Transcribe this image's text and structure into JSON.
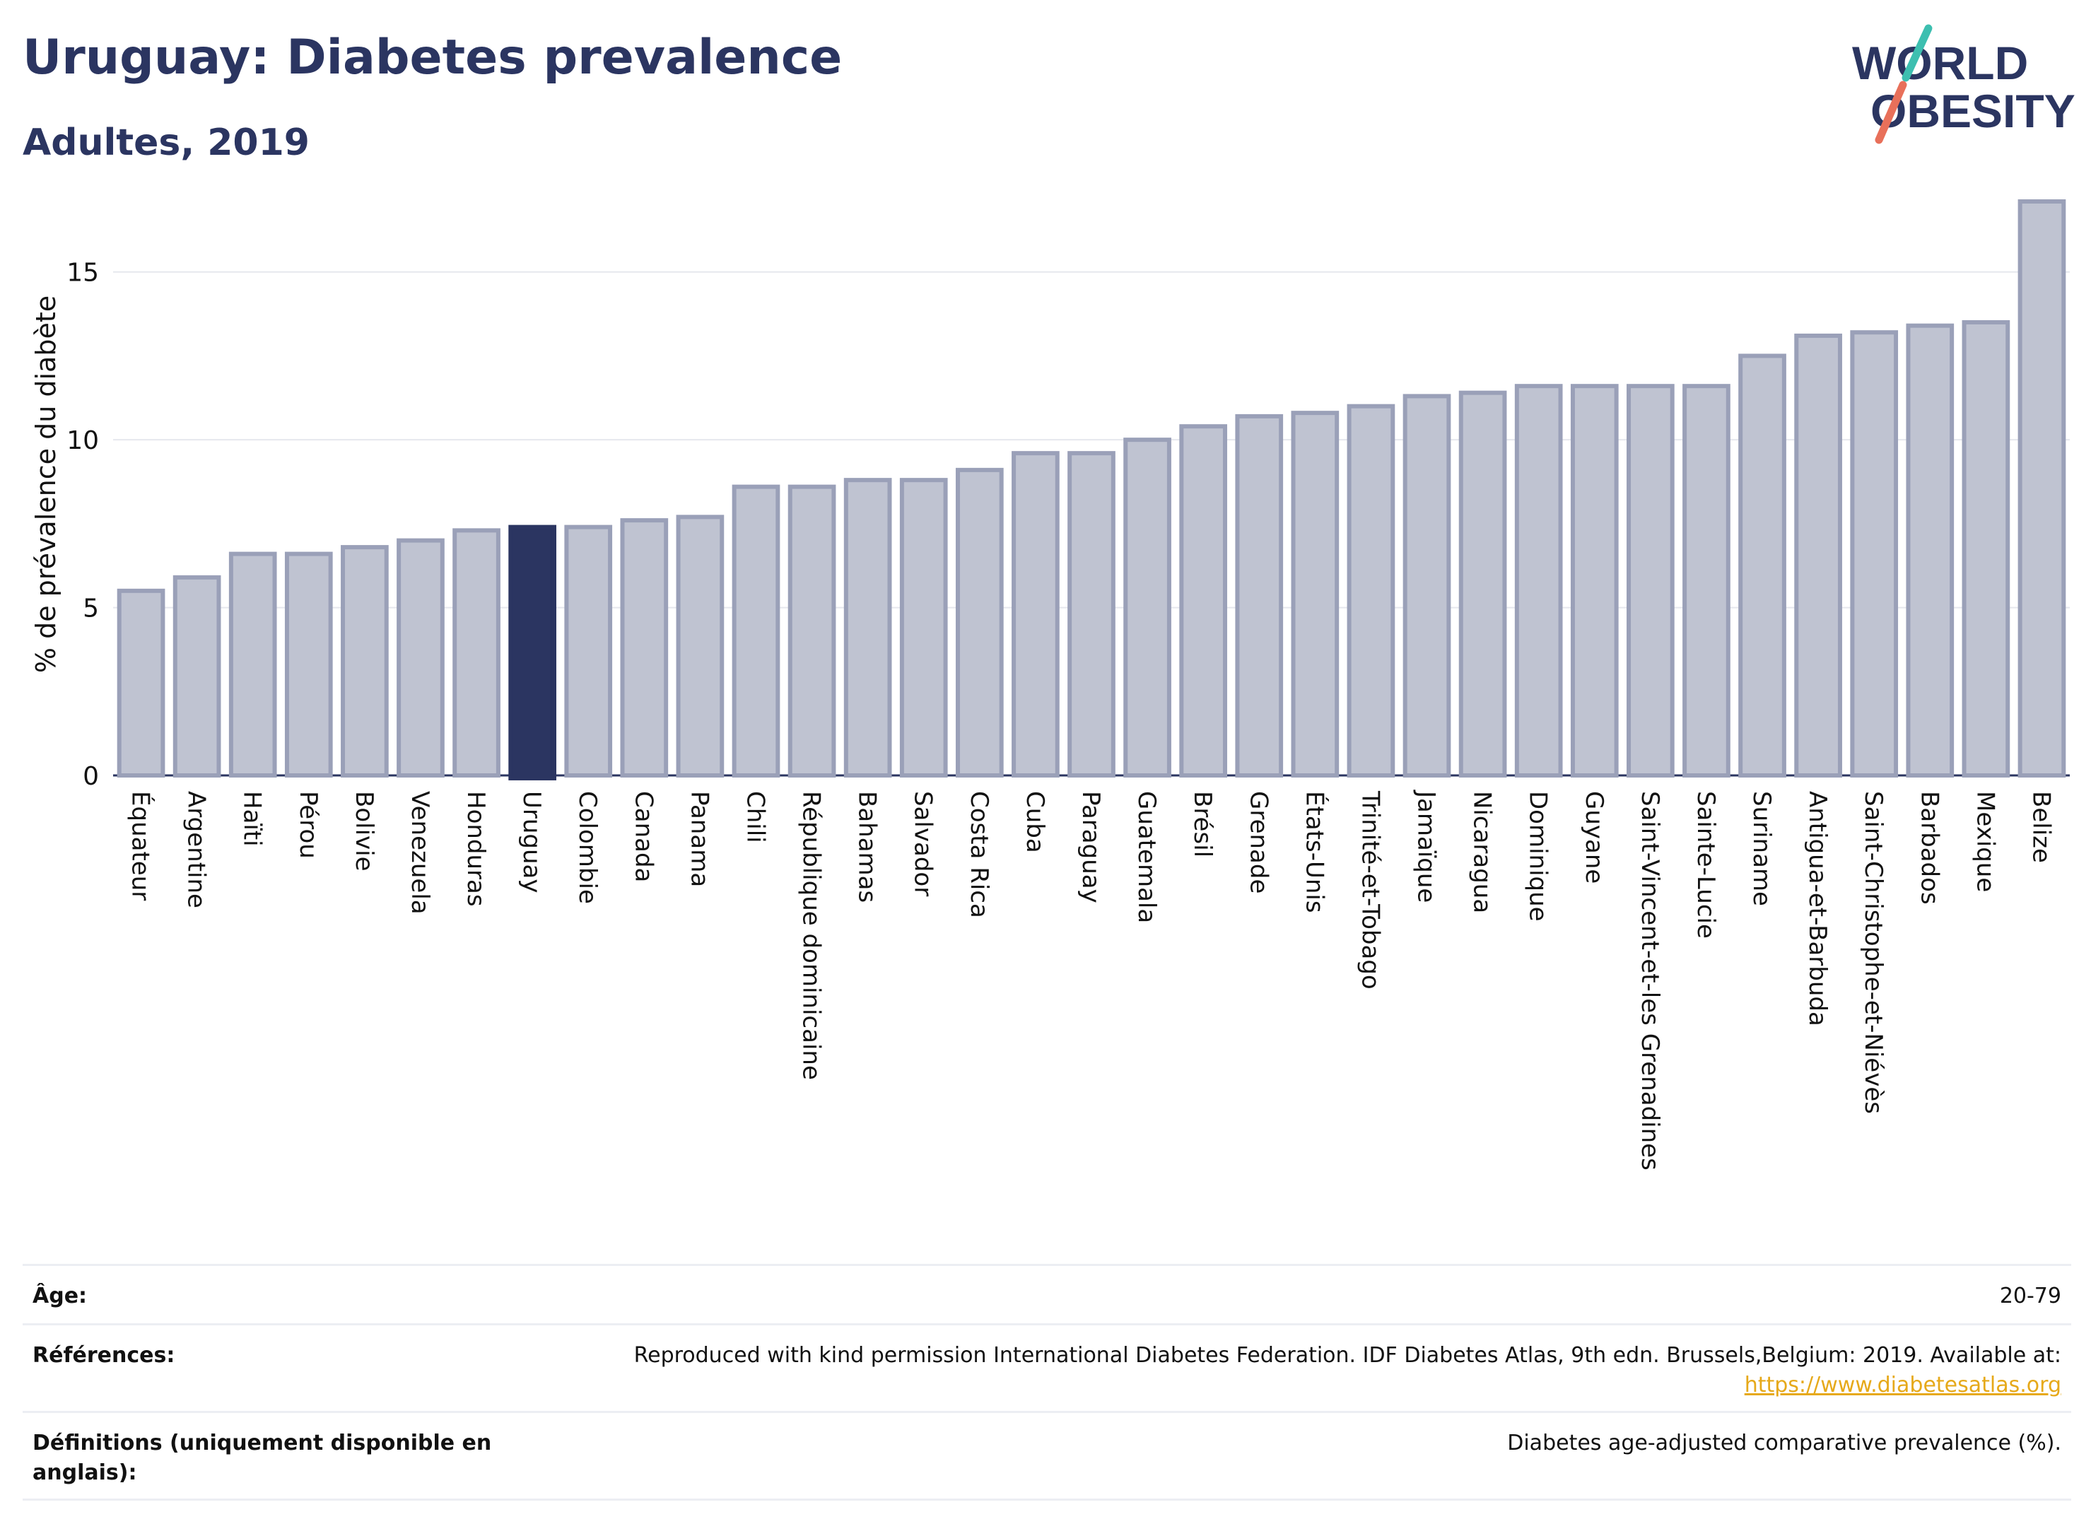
{
  "header": {
    "title": "Uruguay: Diabetes prevalence",
    "subtitle": "Adultes, 2019"
  },
  "logo": {
    "line1": "WORLD",
    "line2": "OBESITY",
    "colors": {
      "text": "#2b3561",
      "slash_top": "#3dbfb0",
      "slash_bottom": "#e8705a"
    }
  },
  "chart_data": {
    "type": "bar",
    "title": "Uruguay: Diabetes prevalence",
    "subtitle": "Adultes, 2019",
    "ylabel": "% de prévalence du diabète",
    "xlabel": "",
    "ylim": [
      0,
      17.5
    ],
    "yticks": [
      0,
      5,
      10,
      15
    ],
    "grid": true,
    "highlight": "Uruguay",
    "colors": {
      "bar": "#bfc3d1",
      "bar_border": "#9aa0b8",
      "highlight": "#2b3561"
    },
    "categories": [
      "Équateur",
      "Argentine",
      "Haïti",
      "Pérou",
      "Bolivie",
      "Venezuela",
      "Honduras",
      "Uruguay",
      "Colombie",
      "Canada",
      "Panama",
      "Chili",
      "République dominicaine",
      "Bahamas",
      "Salvador",
      "Costa Rica",
      "Cuba",
      "Paraguay",
      "Guatemala",
      "Brésil",
      "Grenade",
      "États-Unis",
      "Trinité-et-Tobago",
      "Jamaïque",
      "Nicaragua",
      "Dominique",
      "Guyane",
      "Saint-Vincent-et-les Grenadines",
      "Sainte-Lucie",
      "Suriname",
      "Antigua-et-Barbuda",
      "Saint-Christophe-et-Niévès",
      "Barbados",
      "Mexique",
      "Belize"
    ],
    "values": [
      5.5,
      5.9,
      6.6,
      6.6,
      6.8,
      7.0,
      7.3,
      7.4,
      7.4,
      7.6,
      7.7,
      8.6,
      8.6,
      8.8,
      8.8,
      9.1,
      9.6,
      9.6,
      10.0,
      10.4,
      10.7,
      10.8,
      11.0,
      11.3,
      11.4,
      11.6,
      11.6,
      11.6,
      11.6,
      12.5,
      13.1,
      13.2,
      13.4,
      13.5,
      17.1
    ]
  },
  "details": {
    "age_label": "Âge:",
    "age_value": "20-79",
    "refs_label": "Références:",
    "refs_value": "Reproduced with kind permission International Diabetes Federation. IDF Diabetes Atlas, 9th edn. Brussels,Belgium: 2019. Available at:",
    "refs_link": "https://www.diabetesatlas.org",
    "defs_label": "Définitions (uniquement disponible en anglais):",
    "defs_value": "Diabetes age-adjusted comparative prevalence (%)."
  }
}
